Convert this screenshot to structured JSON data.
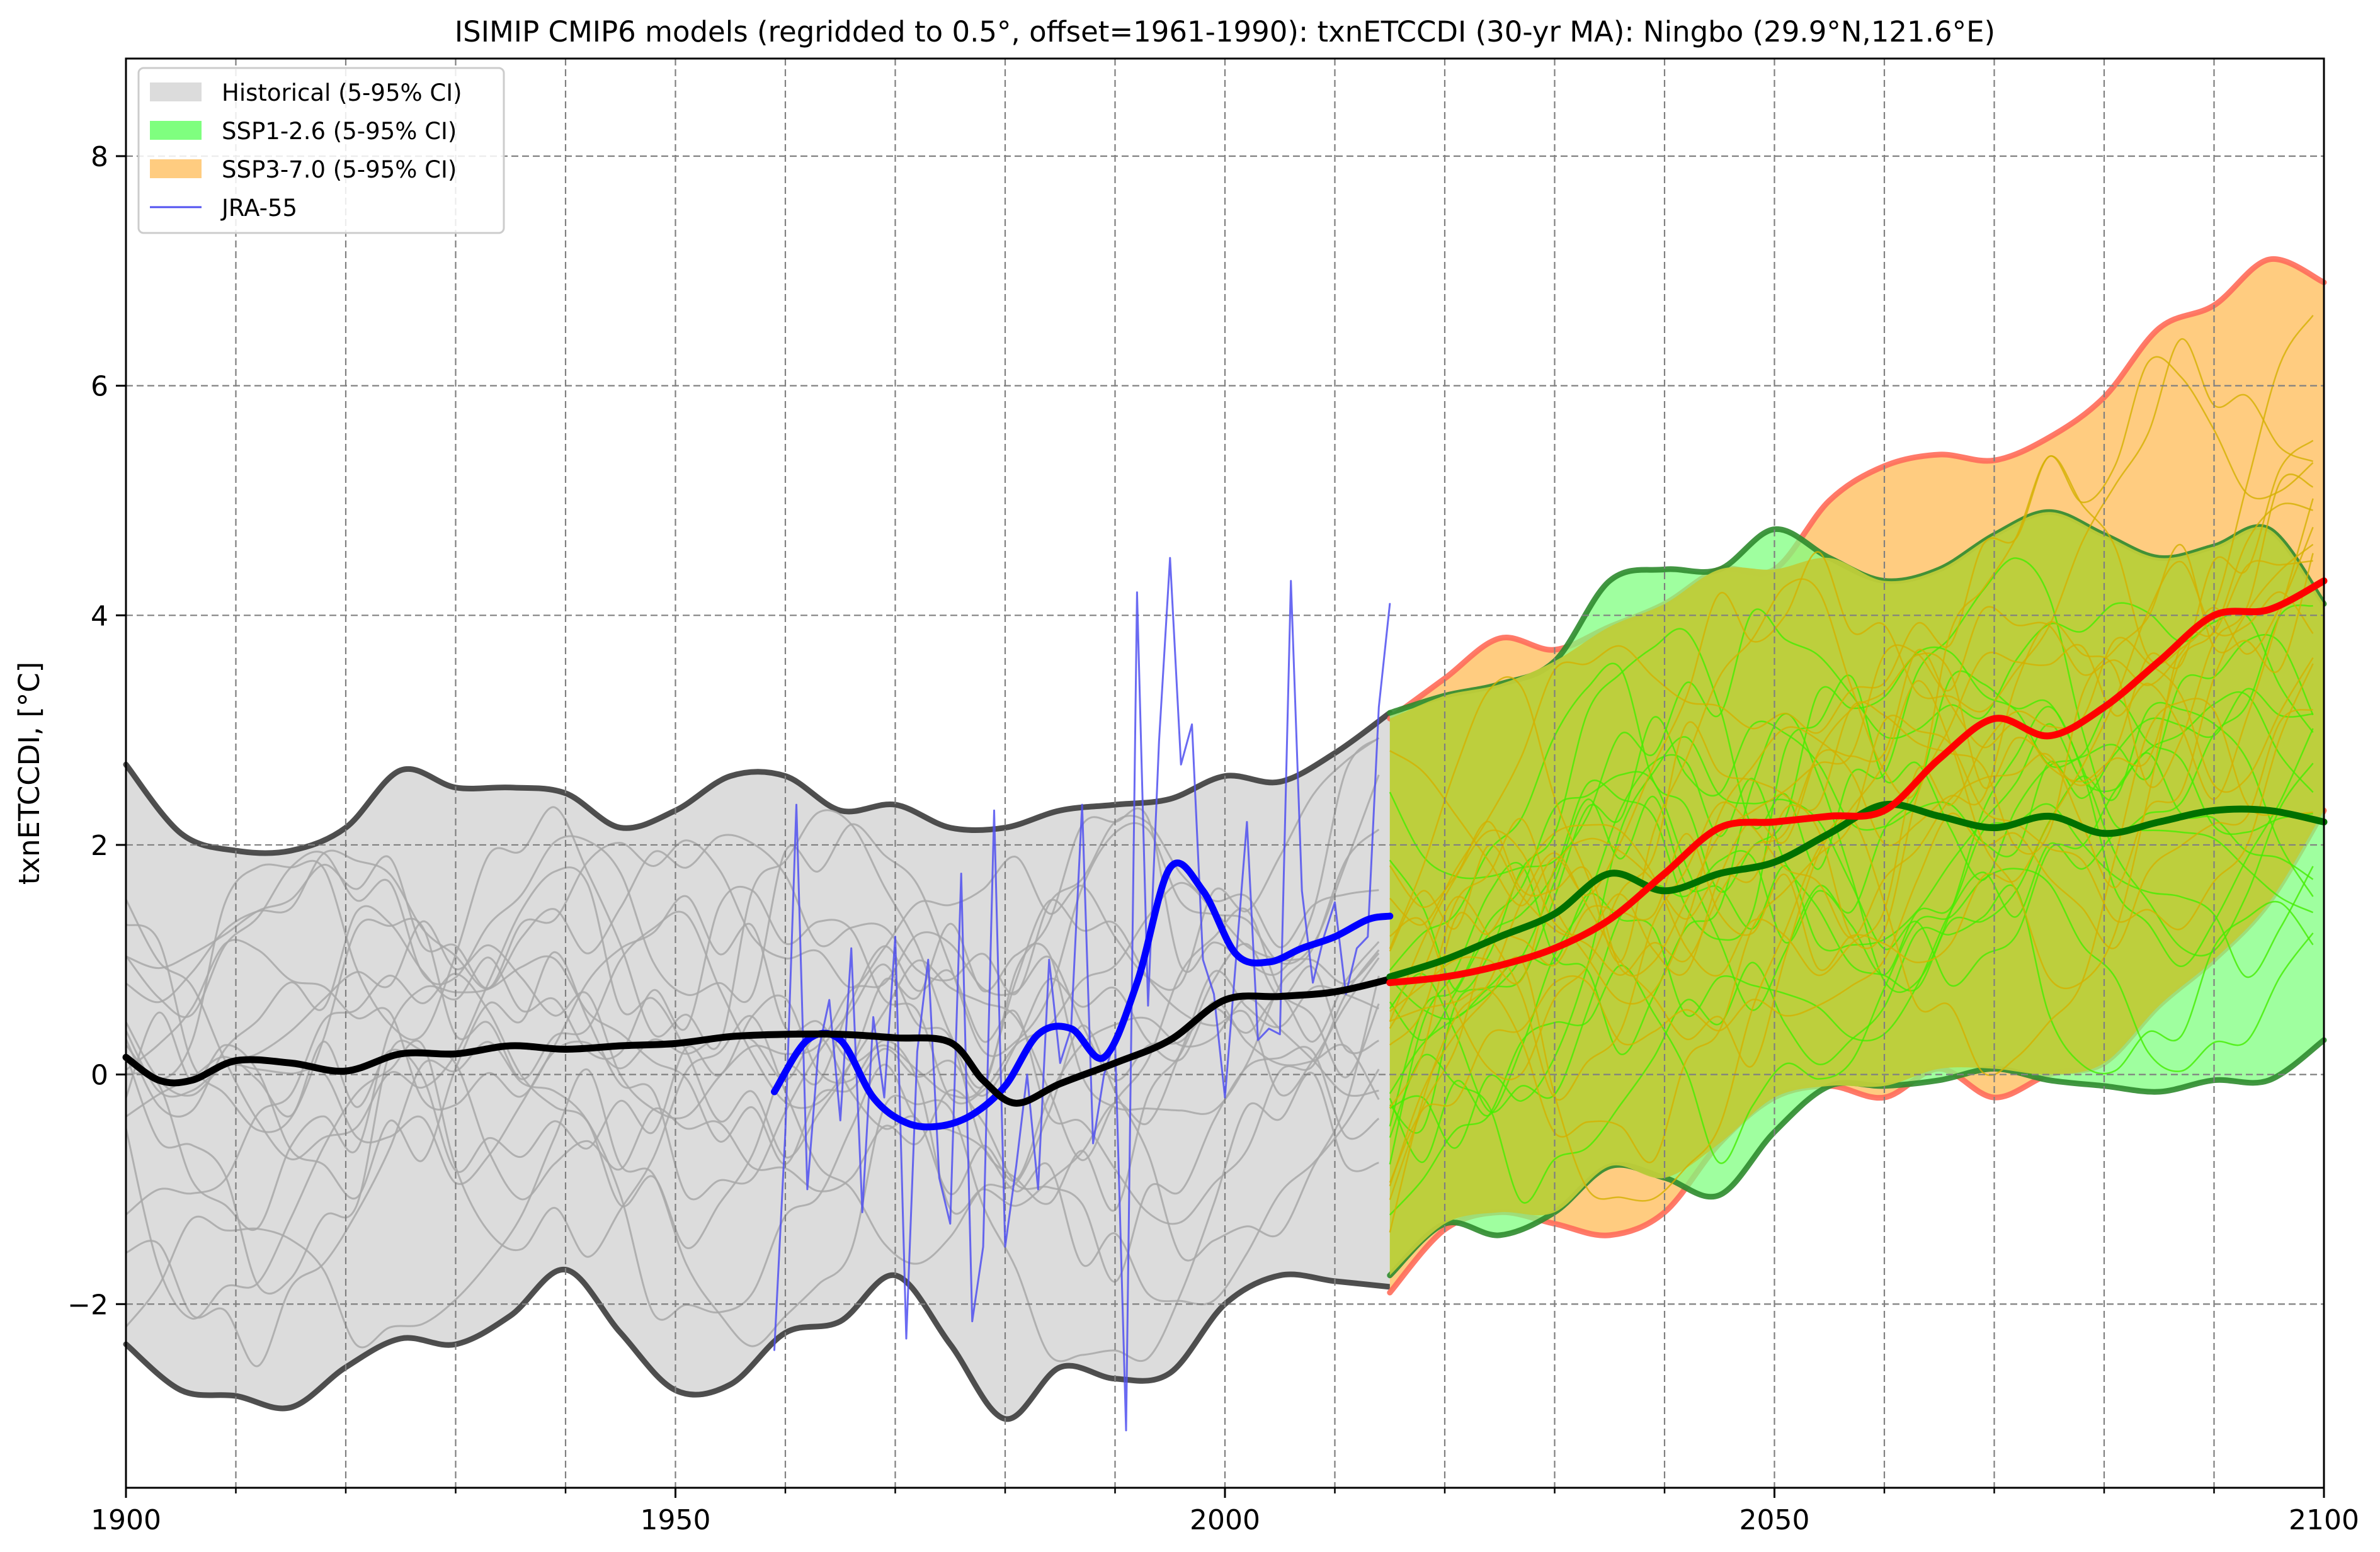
{
  "chart_data": {
    "type": "area",
    "title": "ISIMIP CMIP6 models (regridded to 0.5°, offset=1961-1990): txnETCCDI (30-yr MA): Ningbo (29.9°N,121.6°E)",
    "xlabel": "",
    "ylabel": "txnETCCDI, [°C]",
    "xlim": [
      1900,
      2100
    ],
    "ylim": [
      -3.6,
      8.85
    ],
    "xticks": [
      1900,
      1950,
      2000,
      2050,
      2100
    ],
    "xticks_minor": [
      1910,
      1920,
      1930,
      1940,
      1960,
      1970,
      1980,
      1990,
      2010,
      2020,
      2030,
      2040,
      2060,
      2070,
      2080,
      2090
    ],
    "yticks": [
      -2,
      0,
      2,
      4,
      6,
      8
    ],
    "ytick_labels": [
      "−2",
      "0",
      "2",
      "4",
      "6",
      "8"
    ],
    "grid": true,
    "legend_position": "top-left",
    "legend": [
      {
        "label": "Historical (5-95% CI)",
        "kind": "patch",
        "color": "#dcdcdc"
      },
      {
        "label": "SSP1-2.6 (5-95% CI)",
        "kind": "patch",
        "color": "#7fff7f"
      },
      {
        "label": "SSP3-7.0 (5-95% CI)",
        "kind": "patch",
        "color": "#ffcc80"
      },
      {
        "label": "JRA-55",
        "kind": "line",
        "color": "#5050f0"
      }
    ],
    "bands": [
      {
        "name": "Historical (5-95% CI)",
        "fill": "#dcdcdc",
        "edge": "#3c3c3c",
        "x": [
          1900,
          1905,
          1910,
          1915,
          1920,
          1925,
          1930,
          1935,
          1940,
          1945,
          1950,
          1955,
          1960,
          1965,
          1970,
          1975,
          1980,
          1985,
          1990,
          1995,
          2000,
          2005,
          2010,
          2015
        ],
        "upper": [
          2.7,
          2.1,
          1.95,
          1.95,
          2.15,
          2.65,
          2.5,
          2.5,
          2.45,
          2.15,
          2.3,
          2.6,
          2.6,
          2.3,
          2.35,
          2.15,
          2.15,
          2.3,
          2.35,
          2.4,
          2.6,
          2.55,
          2.8,
          3.15
        ],
        "lower": [
          -2.35,
          -2.75,
          -2.8,
          -2.9,
          -2.55,
          -2.3,
          -2.35,
          -2.1,
          -1.7,
          -2.25,
          -2.75,
          -2.7,
          -2.25,
          -2.15,
          -1.75,
          -2.35,
          -3.0,
          -2.55,
          -2.65,
          -2.6,
          -2.0,
          -1.75,
          -1.8,
          -1.85
        ]
      },
      {
        "name": "SSP3-7.0 (5-95% CI)",
        "fill": "#ffcc80",
        "edge": "#ff6b5a",
        "x": [
          2015,
          2020,
          2025,
          2030,
          2035,
          2040,
          2045,
          2050,
          2055,
          2060,
          2065,
          2070,
          2075,
          2080,
          2085,
          2090,
          2095,
          2100
        ],
        "upper": [
          3.1,
          3.45,
          3.8,
          3.7,
          3.9,
          4.1,
          4.4,
          4.4,
          5.0,
          5.3,
          5.4,
          5.35,
          5.55,
          5.9,
          6.5,
          6.7,
          7.1,
          6.9
        ],
        "lower": [
          -1.9,
          -1.35,
          -1.2,
          -1.3,
          -1.4,
          -1.2,
          -0.6,
          -0.2,
          -0.1,
          -0.2,
          0.05,
          -0.2,
          0.0,
          0.1,
          0.6,
          1.0,
          1.5,
          2.3
        ]
      },
      {
        "name": "SSP1-2.6 (5-95% CI)",
        "fill": "#7fff7f",
        "edge": "#2e8b2e",
        "x": [
          2015,
          2020,
          2025,
          2030,
          2035,
          2040,
          2045,
          2050,
          2055,
          2060,
          2065,
          2070,
          2075,
          2080,
          2085,
          2090,
          2095,
          2100
        ],
        "upper": [
          3.15,
          3.3,
          3.4,
          3.6,
          4.3,
          4.4,
          4.4,
          4.75,
          4.5,
          4.3,
          4.4,
          4.7,
          4.9,
          4.7,
          4.5,
          4.6,
          4.75,
          4.1
        ],
        "lower": [
          -1.75,
          -1.3,
          -1.4,
          -1.2,
          -0.8,
          -0.9,
          -1.05,
          -0.5,
          -0.1,
          -0.1,
          -0.05,
          0.05,
          -0.05,
          -0.1,
          -0.15,
          -0.05,
          -0.05,
          0.3
        ]
      }
    ],
    "series": [
      {
        "name": "JRA-55",
        "color": "#5050f0",
        "x": [
          1959,
          1960,
          1961,
          1962,
          1963,
          1964,
          1965,
          1966,
          1967,
          1968,
          1969,
          1970,
          1971,
          1972,
          1973,
          1974,
          1975,
          1976,
          1977,
          1978,
          1979,
          1980,
          1981,
          1982,
          1983,
          1984,
          1985,
          1986,
          1987,
          1988,
          1989,
          1990,
          1991,
          1992,
          1993,
          1994,
          1995,
          1996,
          1997,
          1998,
          1999,
          2000,
          2001,
          2002,
          2003,
          2004,
          2005,
          2006,
          2007,
          2008,
          2009,
          2010,
          2011,
          2012,
          2013,
          2014,
          2015
        ],
        "values": [
          -2.4,
          -0.5,
          2.35,
          -1.0,
          0.2,
          0.65,
          -0.4,
          1.1,
          -1.2,
          0.5,
          -0.2,
          1.2,
          -2.3,
          0.2,
          1.0,
          -0.9,
          -1.3,
          1.75,
          -2.15,
          -1.5,
          2.3,
          -1.5,
          -0.8,
          0.0,
          -1.0,
          1.0,
          0.1,
          0.4,
          2.35,
          -0.6,
          0.0,
          0.3,
          -3.1,
          4.2,
          0.6,
          2.9,
          4.5,
          2.7,
          3.05,
          1.0,
          0.7,
          -0.2,
          1.0,
          2.2,
          0.3,
          0.4,
          0.35,
          4.3,
          1.6,
          0.8,
          1.2,
          1.5,
          0.7,
          1.1,
          1.2,
          3.2,
          4.1
        ]
      },
      {
        "name": "",
        "color": "#0000ff",
        "x": [
          1959,
          1962,
          1965,
          1968,
          1971,
          1974,
          1977,
          1980,
          1983,
          1986,
          1989,
          1992,
          1995,
          1998,
          2001,
          2004,
          2007,
          2010,
          2013,
          2015
        ],
        "values": [
          -0.15,
          0.3,
          0.3,
          -0.2,
          -0.42,
          -0.45,
          -0.35,
          -0.1,
          0.35,
          0.4,
          0.15,
          0.8,
          1.8,
          1.6,
          1.05,
          0.98,
          1.1,
          1.2,
          1.35,
          1.38
        ]
      },
      {
        "name": "",
        "color": "#000000",
        "x": [
          1900,
          1903,
          1906,
          1910,
          1915,
          1920,
          1925,
          1930,
          1935,
          1940,
          1945,
          1950,
          1955,
          1960,
          1965,
          1970,
          1975,
          1978,
          1981,
          1985,
          1990,
          1995,
          2000,
          2005,
          2010,
          2015
        ],
        "values": [
          0.15,
          -0.05,
          -0.05,
          0.12,
          0.1,
          0.03,
          0.18,
          0.18,
          0.25,
          0.22,
          0.25,
          0.27,
          0.33,
          0.35,
          0.35,
          0.32,
          0.28,
          -0.05,
          -0.25,
          -0.08,
          0.1,
          0.3,
          0.65,
          0.68,
          0.72,
          0.83
        ]
      },
      {
        "name": "",
        "color": "#007000",
        "x": [
          2015,
          2020,
          2025,
          2030,
          2035,
          2040,
          2045,
          2050,
          2055,
          2060,
          2065,
          2070,
          2075,
          2080,
          2085,
          2090,
          2095,
          2100
        ],
        "values": [
          0.85,
          1.0,
          1.2,
          1.4,
          1.75,
          1.6,
          1.75,
          1.85,
          2.1,
          2.35,
          2.25,
          2.15,
          2.25,
          2.1,
          2.2,
          2.3,
          2.3,
          2.2
        ]
      },
      {
        "name": "",
        "color": "#ff0000",
        "x": [
          2015,
          2020,
          2025,
          2030,
          2035,
          2040,
          2045,
          2050,
          2055,
          2060,
          2065,
          2070,
          2075,
          2080,
          2085,
          2090,
          2095,
          2100
        ],
        "values": [
          0.8,
          0.85,
          0.95,
          1.1,
          1.35,
          1.75,
          2.15,
          2.2,
          2.25,
          2.3,
          2.75,
          3.1,
          2.95,
          3.2,
          3.6,
          4.0,
          4.05,
          4.3
        ]
      }
    ]
  }
}
